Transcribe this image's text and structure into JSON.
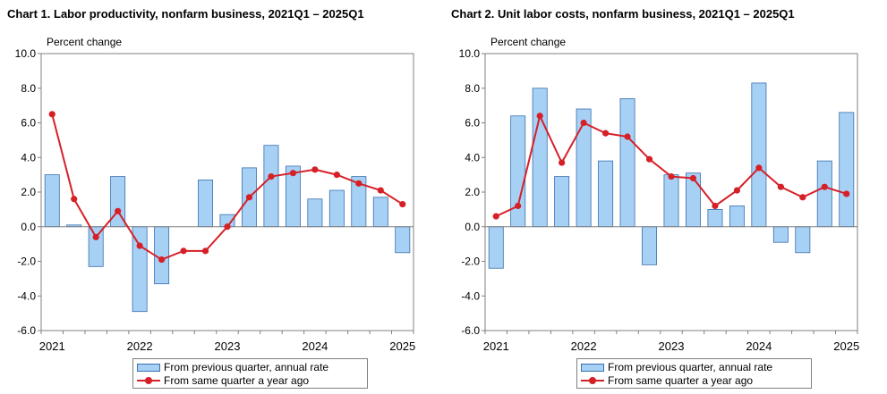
{
  "chart_data": [
    {
      "type": "bar",
      "title": "Chart  1. Labor productivity, nonfarm business, 2021Q1 – 2025Q1",
      "ylabel": "Percent change",
      "xlabel": "",
      "ylim": [
        -6.0,
        10.0
      ],
      "y_ticks": [
        "10.0",
        "8.0",
        "6.0",
        "4.0",
        "2.0",
        "0.0",
        "-2.0",
        "-4.0",
        "-6.0"
      ],
      "x_tick_labels": [
        "2021",
        "2022",
        "2023",
        "2024",
        "2025"
      ],
      "categories": [
        "2021Q1",
        "2021Q2",
        "2021Q3",
        "2021Q4",
        "2022Q1",
        "2022Q2",
        "2022Q3",
        "2022Q4",
        "2023Q1",
        "2023Q2",
        "2023Q3",
        "2023Q4",
        "2024Q1",
        "2024Q2",
        "2024Q3",
        "2024Q4",
        "2025Q1"
      ],
      "series": [
        {
          "name": "From previous quarter, annual rate",
          "kind": "bar",
          "values": [
            3.0,
            0.1,
            -2.3,
            2.9,
            -4.9,
            -3.3,
            0.0,
            2.7,
            0.7,
            3.4,
            4.7,
            3.5,
            1.6,
            2.1,
            2.9,
            1.7,
            -1.5
          ]
        },
        {
          "name": "From same quarter a year ago",
          "kind": "line",
          "values": [
            6.5,
            1.6,
            -0.6,
            0.9,
            -1.1,
            -1.9,
            -1.4,
            -1.4,
            0.0,
            1.7,
            2.9,
            3.1,
            3.3,
            3.0,
            2.5,
            2.1,
            1.3
          ]
        }
      ],
      "grid": false,
      "legend_placement": "bottom"
    },
    {
      "type": "bar",
      "title": "Chart  2. Unit labor costs, nonfarm business, 2021Q1 – 2025Q1",
      "ylabel": "Percent change",
      "xlabel": "",
      "ylim": [
        -6.0,
        10.0
      ],
      "y_ticks": [
        "10.0",
        "8.0",
        "6.0",
        "4.0",
        "2.0",
        "0.0",
        "-2.0",
        "-4.0",
        "-6.0"
      ],
      "x_tick_labels": [
        "2021",
        "2022",
        "2023",
        "2024",
        "2025"
      ],
      "categories": [
        "2021Q1",
        "2021Q2",
        "2021Q3",
        "2021Q4",
        "2022Q1",
        "2022Q2",
        "2022Q3",
        "2022Q4",
        "2023Q1",
        "2023Q2",
        "2023Q3",
        "2023Q4",
        "2024Q1",
        "2024Q2",
        "2024Q3",
        "2024Q4",
        "2025Q1"
      ],
      "series": [
        {
          "name": "From previous quarter, annual rate",
          "kind": "bar",
          "values": [
            -2.4,
            6.4,
            8.0,
            2.9,
            6.8,
            3.8,
            7.4,
            -2.2,
            3.0,
            3.1,
            1.0,
            1.2,
            8.3,
            -0.9,
            -1.5,
            3.8,
            6.6
          ]
        },
        {
          "name": "From same quarter a year ago",
          "kind": "line",
          "values": [
            0.6,
            1.2,
            6.4,
            3.7,
            6.0,
            5.4,
            5.2,
            3.9,
            2.9,
            2.8,
            1.2,
            2.1,
            3.4,
            2.3,
            1.7,
            2.3,
            1.9
          ]
        }
      ],
      "grid": false,
      "legend_placement": "bottom"
    }
  ],
  "colors": {
    "bar_fill": "#a6d1f5",
    "bar_stroke": "#3a6fb0",
    "line": "#d62027",
    "axis": "#808080"
  }
}
